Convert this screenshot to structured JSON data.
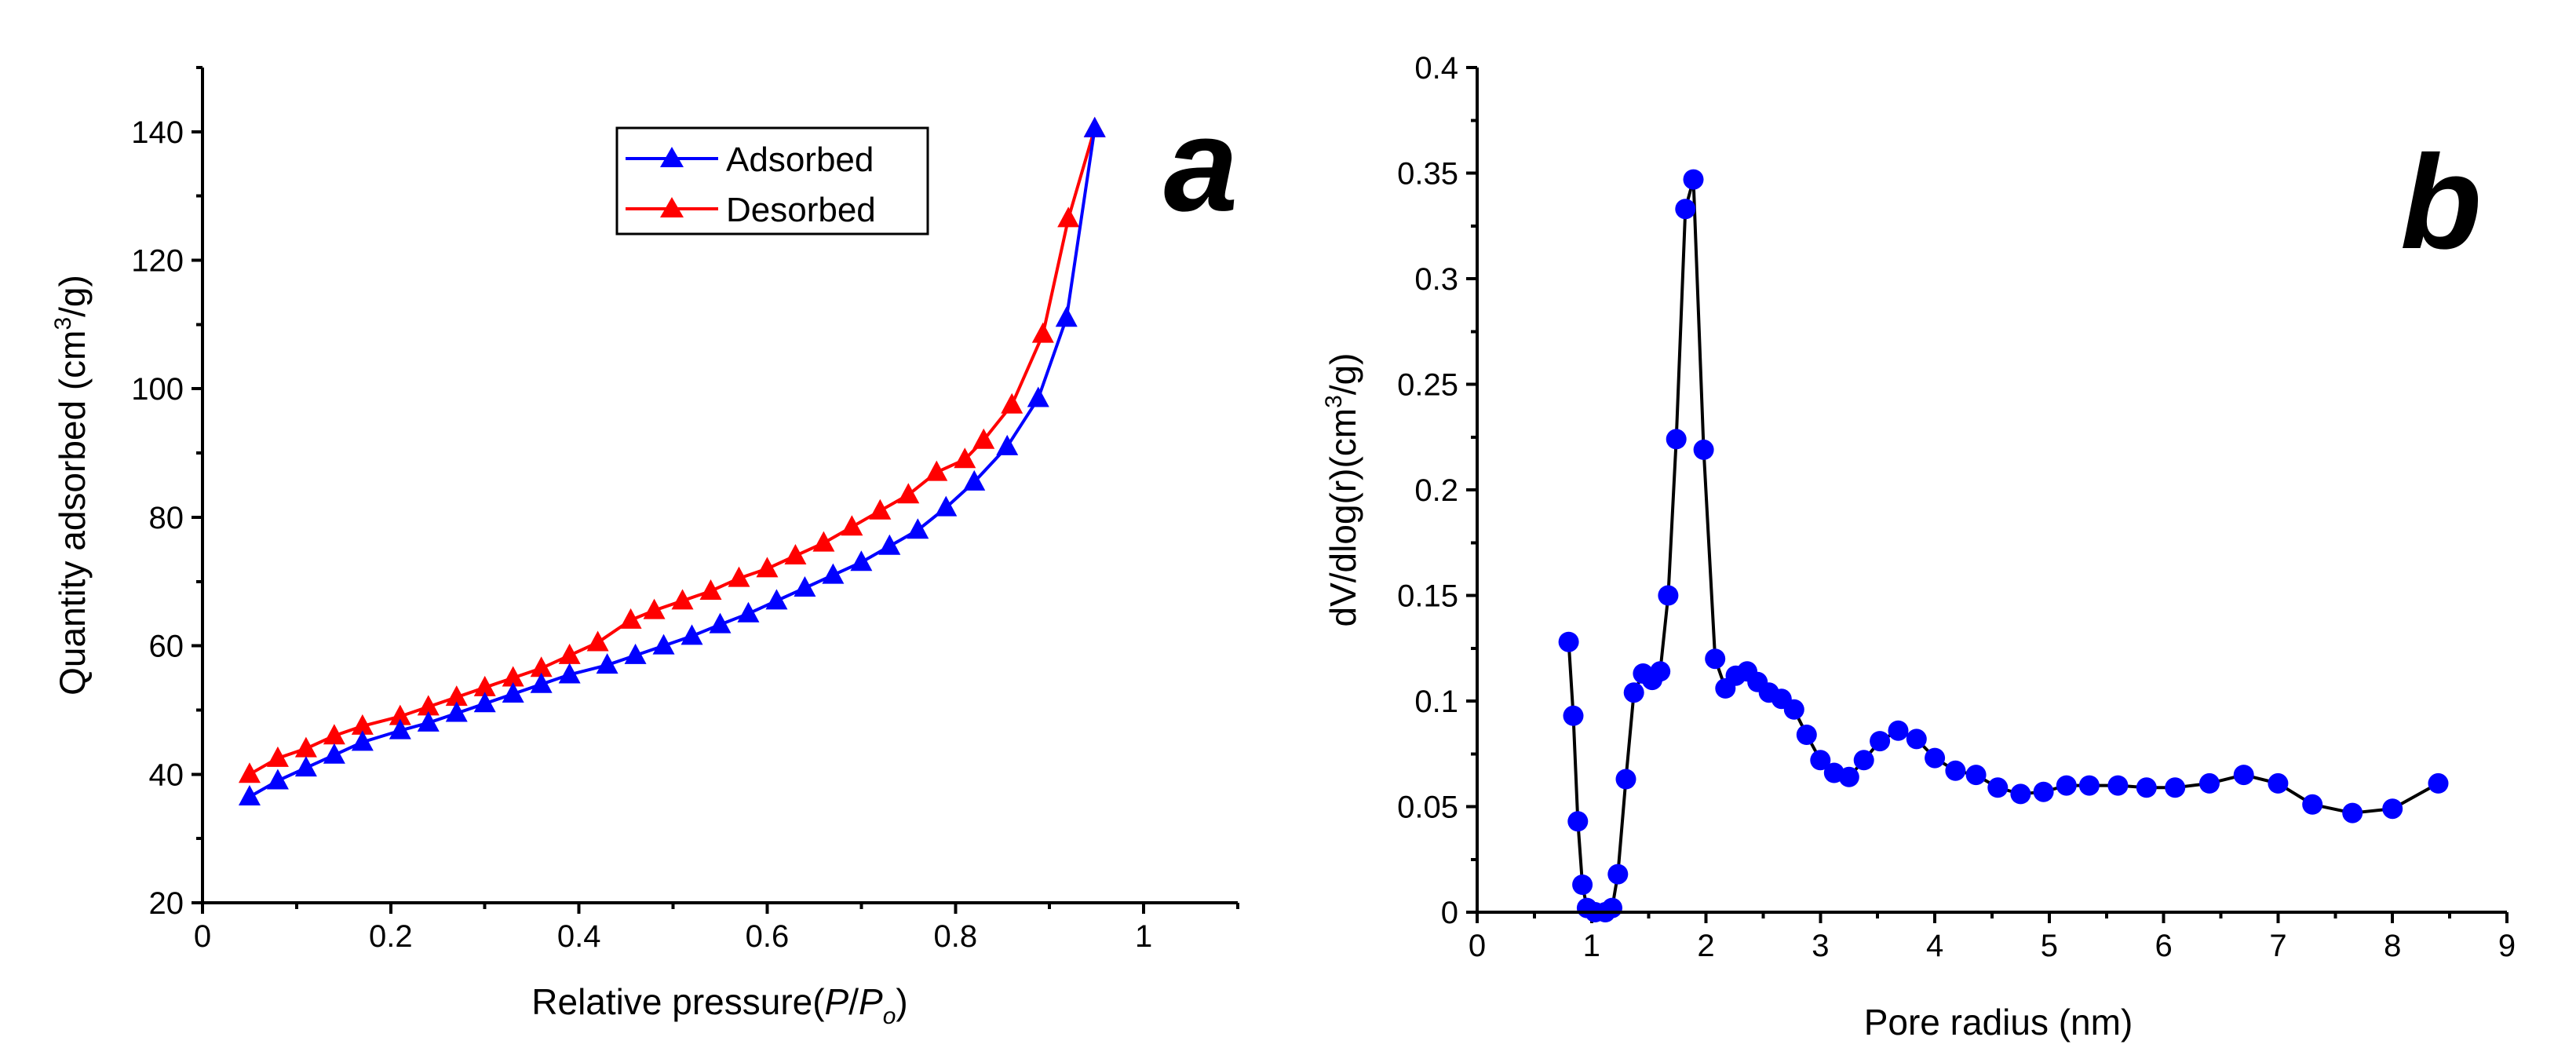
{
  "chart_data": [
    {
      "type": "line",
      "panel_label": "a",
      "xlabel_main": "Relative pressure(",
      "xlabel_italic_p": "P",
      "xlabel_slash": "/",
      "xlabel_italic_p0": "P",
      "xlabel_sub": "o",
      "xlabel_close": ")",
      "ylabel_main": "Quantity adsorbed (cm",
      "ylabel_sup": "3",
      "ylabel_end": "/g)",
      "xlim": [
        0,
        1.1
      ],
      "ylim": [
        20,
        150
      ],
      "x_ticks": [
        0,
        0.2,
        0.4,
        0.6,
        0.8,
        1
      ],
      "x_tick_labels": [
        "0",
        "0.2",
        "0.4",
        "0.6",
        "0.8",
        "1"
      ],
      "y_ticks": [
        20,
        40,
        60,
        80,
        100,
        120,
        140
      ],
      "y_tick_labels": [
        "20",
        "40",
        "60",
        "80",
        "100",
        "120",
        "140"
      ],
      "legend_position": "top-center",
      "series": [
        {
          "name": "Adsorbed",
          "color": "#0000ff",
          "marker": "triangle",
          "x": [
            0.05,
            0.08,
            0.11,
            0.14,
            0.17,
            0.21,
            0.24,
            0.27,
            0.3,
            0.33,
            0.36,
            0.39,
            0.43,
            0.46,
            0.49,
            0.52,
            0.55,
            0.58,
            0.61,
            0.64,
            0.67,
            0.7,
            0.73,
            0.76,
            0.79,
            0.82,
            0.855,
            0.888,
            0.918,
            0.948
          ],
          "y": [
            36.5,
            39.0,
            41.0,
            43.0,
            45.0,
            46.8,
            48.0,
            49.5,
            51.0,
            52.5,
            54.0,
            55.5,
            57.0,
            58.5,
            60.0,
            61.5,
            63.3,
            65.0,
            67.0,
            69.0,
            71.0,
            73.0,
            75.5,
            78.0,
            81.5,
            85.5,
            91.0,
            98.5,
            111.0,
            140.5
          ]
        },
        {
          "name": "Desorbed",
          "color": "#ff0000",
          "marker": "triangle",
          "x": [
            0.05,
            0.08,
            0.11,
            0.14,
            0.17,
            0.21,
            0.24,
            0.27,
            0.3,
            0.33,
            0.36,
            0.39,
            0.42,
            0.455,
            0.48,
            0.51,
            0.54,
            0.57,
            0.6,
            0.63,
            0.66,
            0.69,
            0.72,
            0.75,
            0.78,
            0.81,
            0.83,
            0.86,
            0.893,
            0.92,
            0.948
          ],
          "y": [
            40.0,
            42.5,
            44.0,
            46.0,
            47.5,
            49.0,
            50.5,
            52.0,
            53.5,
            55.0,
            56.5,
            58.5,
            60.5,
            64.0,
            65.5,
            67.0,
            68.5,
            70.5,
            72.0,
            74.0,
            76.0,
            78.5,
            81.0,
            83.5,
            87.0,
            89.0,
            92.0,
            97.5,
            108.5,
            126.5,
            140.5
          ]
        }
      ]
    },
    {
      "type": "line",
      "panel_label": "b",
      "xlabel": "Pore radius (nm)",
      "ylabel_main": "dV/dlog(r)(cm",
      "ylabel_sup": "3",
      "ylabel_end": "/g)",
      "xlim": [
        0,
        9
      ],
      "ylim": [
        0,
        0.4
      ],
      "x_ticks": [
        0,
        1,
        2,
        3,
        4,
        5,
        6,
        7,
        8,
        9
      ],
      "x_tick_labels": [
        "0",
        "1",
        "2",
        "3",
        "4",
        "5",
        "6",
        "7",
        "8",
        "9"
      ],
      "y_ticks": [
        0,
        0.05,
        0.1,
        0.15,
        0.2,
        0.25,
        0.3,
        0.35,
        0.4
      ],
      "y_tick_labels": [
        "0",
        "0.05",
        "0.1",
        "0.15",
        "0.2",
        "0.25",
        "0.3",
        "0.35",
        "0.4"
      ],
      "series": [
        {
          "color": "#0000ff",
          "line_color": "#000000",
          "marker": "circle",
          "x": [
            0.8,
            0.84,
            0.88,
            0.92,
            0.96,
            1.03,
            1.12,
            1.18,
            1.23,
            1.3,
            1.37,
            1.45,
            1.53,
            1.6,
            1.67,
            1.74,
            1.82,
            1.89,
            1.98,
            2.08,
            2.17,
            2.26,
            2.36,
            2.45,
            2.55,
            2.66,
            2.77,
            2.88,
            3.0,
            3.12,
            3.25,
            3.38,
            3.52,
            3.68,
            3.84,
            4.0,
            4.18,
            4.36,
            4.55,
            4.75,
            4.95,
            5.15,
            5.35,
            5.6,
            5.85,
            6.1,
            6.4,
            6.7,
            7.0,
            7.3,
            7.65,
            8.0,
            8.4
          ],
          "y": [
            0.128,
            0.093,
            0.043,
            0.013,
            0.002,
            0.0,
            0.0,
            0.002,
            0.018,
            0.063,
            0.104,
            0.113,
            0.11,
            0.114,
            0.15,
            0.224,
            0.333,
            0.347,
            0.219,
            0.12,
            0.106,
            0.112,
            0.114,
            0.109,
            0.104,
            0.101,
            0.096,
            0.084,
            0.072,
            0.066,
            0.064,
            0.072,
            0.081,
            0.086,
            0.082,
            0.073,
            0.067,
            0.065,
            0.059,
            0.056,
            0.057,
            0.06,
            0.06,
            0.06,
            0.059,
            0.059,
            0.061,
            0.065,
            0.061,
            0.051,
            0.047,
            0.049,
            0.061
          ]
        }
      ]
    }
  ],
  "legend_a": {
    "adsorbed_label": "Adsorbed",
    "desorbed_label": "Desorbed"
  }
}
